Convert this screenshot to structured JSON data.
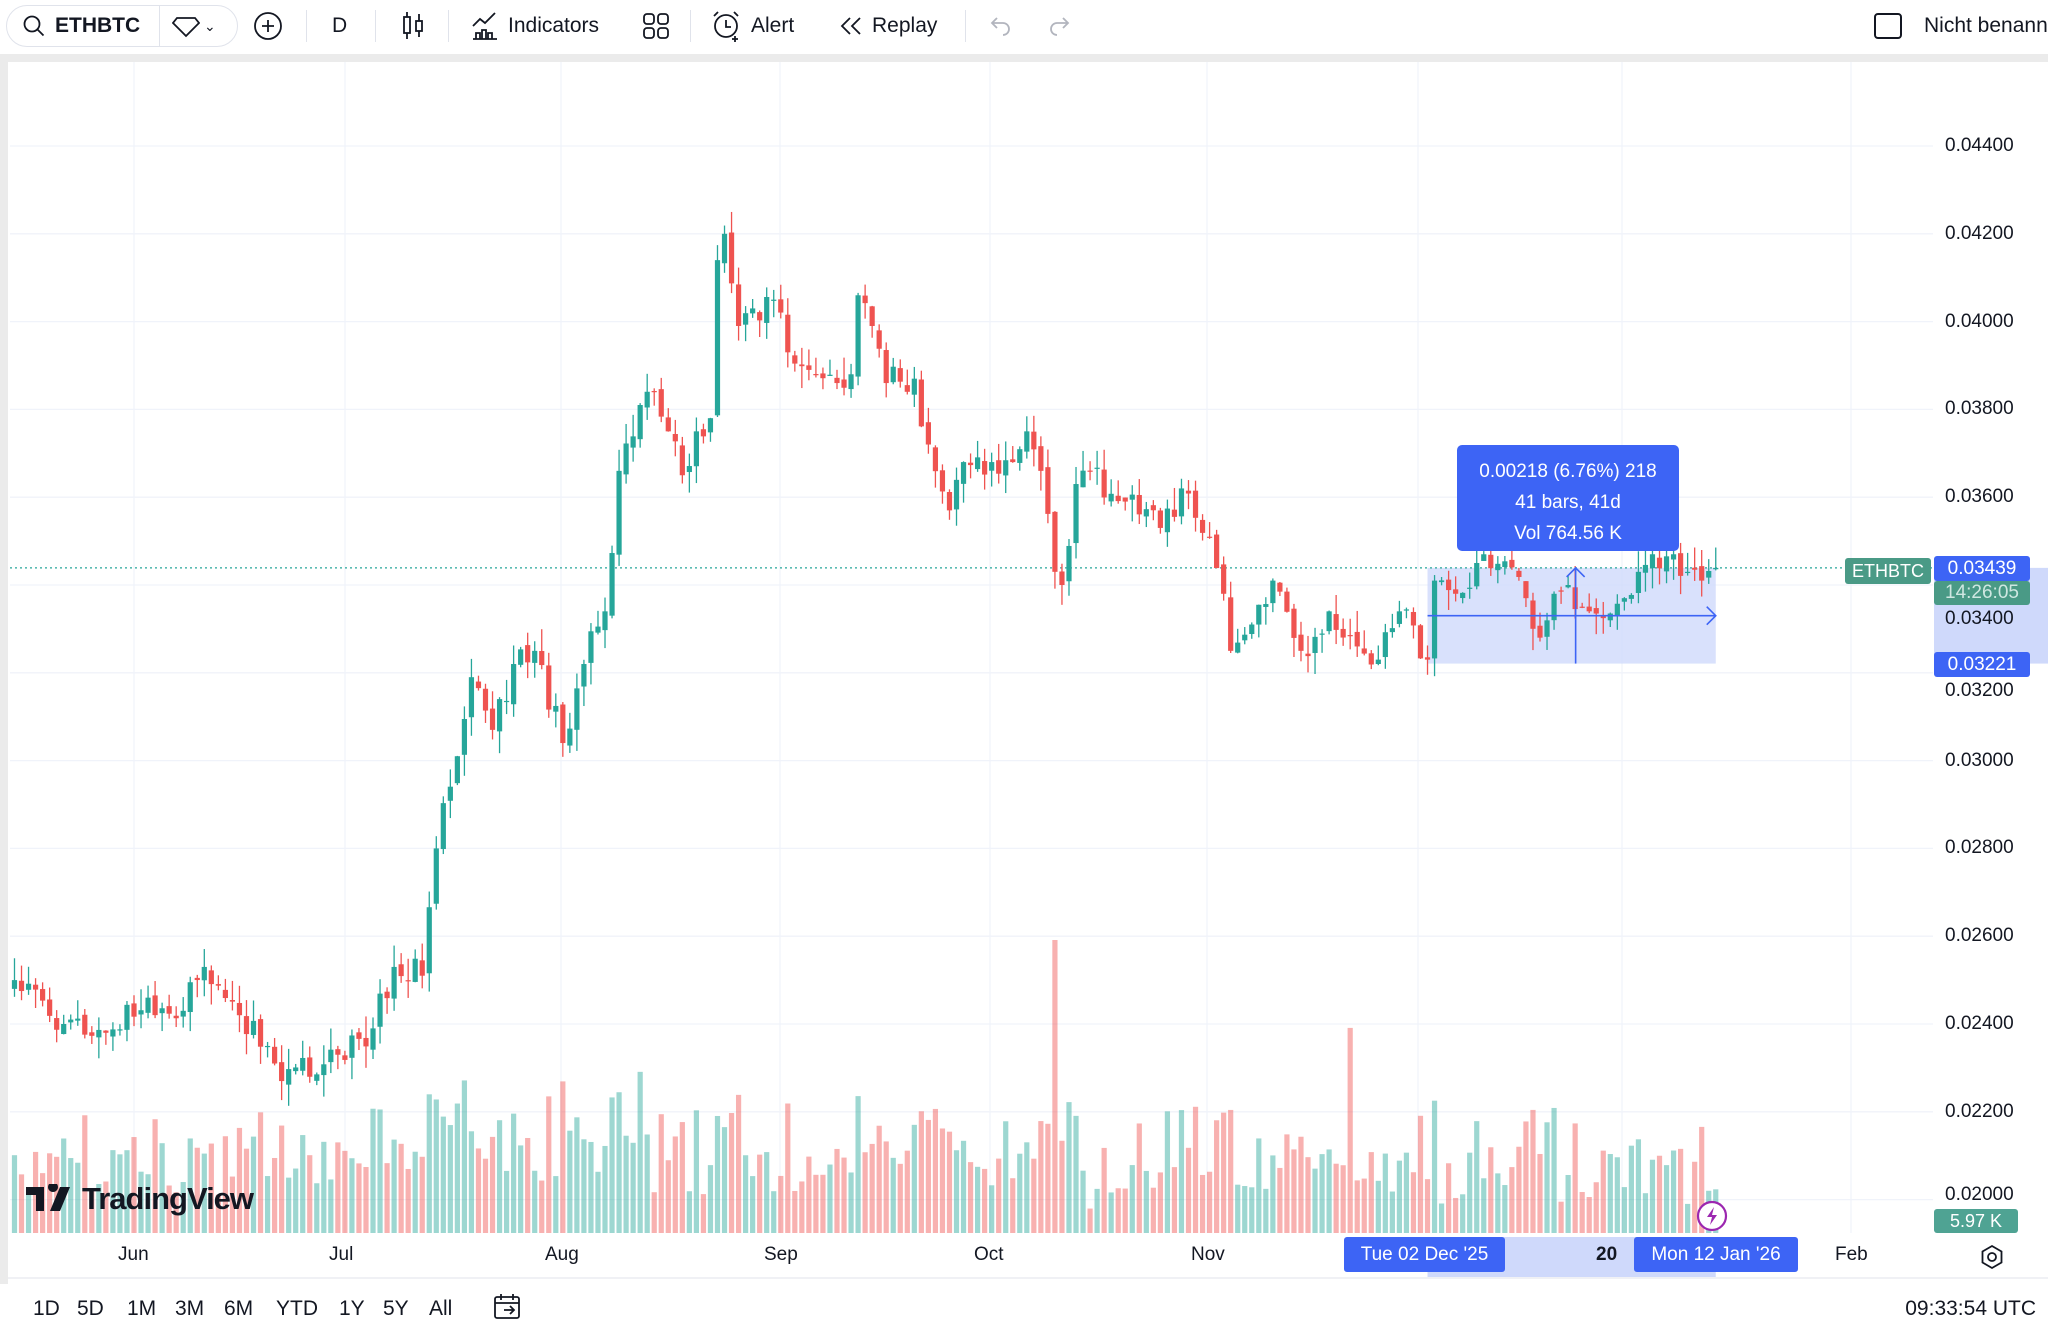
{
  "toolbar": {
    "symbol": "ETHBTC",
    "interval": "D",
    "indicators_label": "Indicators",
    "alert_label": "Alert",
    "replay_label": "Replay",
    "layout_name": "Nicht benann"
  },
  "price_axis": {
    "ticks": [
      "0.04400",
      "0.04200",
      "0.04000",
      "0.03800",
      "0.03600",
      "0.03400",
      "0.03200",
      "0.03000",
      "0.02800",
      "0.02600",
      "0.02400",
      "0.02200",
      "0.02000"
    ],
    "symbol_tag": "ETHBTC",
    "last_price": "0.03439",
    "countdown": "14:26:05",
    "measure_low": "0.03221",
    "volume_tag": "5.97 K"
  },
  "time_axis": {
    "ticks": [
      "Jun",
      "Jul",
      "Aug",
      "Sep",
      "Oct",
      "Nov",
      "20",
      "Feb"
    ],
    "range_start": "Tue 02 Dec '25",
    "range_end": "Mon 12 Jan '26"
  },
  "measure": {
    "line1": "0.00218 (6.76%) 218",
    "line2": "41 bars, 41d",
    "line3": "Vol 764.56 K"
  },
  "logo": "TradingView",
  "bottombar": {
    "ranges": [
      "1D",
      "5D",
      "1M",
      "3M",
      "6M",
      "YTD",
      "1Y",
      "5Y",
      "All"
    ],
    "clock": "09:33:54 UTC"
  },
  "colors": {
    "up": "#26a69a",
    "down": "#ef5350",
    "measure": "#3d64f5",
    "measure_fill": "#cfd9fb"
  },
  "chart_data": {
    "type": "candlestick",
    "symbol": "ETHBTC",
    "interval": "1D",
    "ylim": [
      0.0195,
      0.0445
    ],
    "price_path": [
      [
        "2025-05-15",
        0.025
      ],
      [
        "2025-05-22",
        0.024
      ],
      [
        "2025-05-28",
        0.0238
      ],
      [
        "2025-06-03",
        0.0246
      ],
      [
        "2025-06-08",
        0.0243
      ],
      [
        "2025-06-11",
        0.0253
      ],
      [
        "2025-06-16",
        0.0242
      ],
      [
        "2025-06-20",
        0.0235
      ],
      [
        "2025-06-22",
        0.0227
      ],
      [
        "2025-06-30",
        0.0233
      ],
      [
        "2025-07-05",
        0.0239
      ],
      [
        "2025-07-08",
        0.0253
      ],
      [
        "2025-07-12",
        0.0251
      ],
      [
        "2025-07-14",
        0.028
      ],
      [
        "2025-07-17",
        0.0301
      ],
      [
        "2025-07-19",
        0.0319
      ],
      [
        "2025-07-22",
        0.0307
      ],
      [
        "2025-07-25",
        0.0322
      ],
      [
        "2025-07-28",
        0.0325
      ],
      [
        "2025-08-01",
        0.0304
      ],
      [
        "2025-08-04",
        0.0322
      ],
      [
        "2025-08-07",
        0.0334
      ],
      [
        "2025-08-09",
        0.0366
      ],
      [
        "2025-08-12",
        0.0381
      ],
      [
        "2025-08-14",
        0.0384
      ],
      [
        "2025-08-16",
        0.0375
      ],
      [
        "2025-08-18",
        0.0365
      ],
      [
        "2025-08-20",
        0.0375
      ],
      [
        "2025-08-22",
        0.0378
      ],
      [
        "2025-08-23",
        0.0414
      ],
      [
        "2025-08-24",
        0.042
      ],
      [
        "2025-08-26",
        0.0399
      ],
      [
        "2025-08-28",
        0.0403
      ],
      [
        "2025-08-31",
        0.0405
      ],
      [
        "2025-09-02",
        0.0393
      ],
      [
        "2025-09-05",
        0.0389
      ],
      [
        "2025-09-09",
        0.0386
      ],
      [
        "2025-09-11",
        0.0388
      ],
      [
        "2025-09-12",
        0.0406
      ],
      [
        "2025-09-14",
        0.0399
      ],
      [
        "2025-09-16",
        0.0386
      ],
      [
        "2025-09-20",
        0.0387
      ],
      [
        "2025-09-22",
        0.0372
      ],
      [
        "2025-09-25",
        0.0357
      ],
      [
        "2025-09-27",
        0.0368
      ],
      [
        "2025-10-01",
        0.0368
      ],
      [
        "2025-10-04",
        0.0368
      ],
      [
        "2025-10-06",
        0.0375
      ],
      [
        "2025-10-08",
        0.0366
      ],
      [
        "2025-10-10",
        0.0343
      ],
      [
        "2025-10-11",
        0.034
      ],
      [
        "2025-10-13",
        0.0363
      ],
      [
        "2025-10-15",
        0.0366
      ],
      [
        "2025-10-20",
        0.0359
      ],
      [
        "2025-10-25",
        0.0353
      ],
      [
        "2025-10-28",
        0.0362
      ],
      [
        "2025-11-01",
        0.0351
      ],
      [
        "2025-11-03",
        0.0338
      ],
      [
        "2025-11-04",
        0.0325
      ],
      [
        "2025-11-07",
        0.0331
      ],
      [
        "2025-11-10",
        0.0341
      ],
      [
        "2025-11-14",
        0.0325
      ],
      [
        "2025-11-18",
        0.0334
      ],
      [
        "2025-11-22",
        0.0326
      ],
      [
        "2025-11-25",
        0.0323
      ],
      [
        "2025-11-28",
        0.0334
      ],
      [
        "2025-12-02",
        0.0323
      ],
      [
        "2025-12-03",
        0.0341
      ],
      [
        "2025-12-06",
        0.0338
      ],
      [
        "2025-12-10",
        0.0347
      ],
      [
        "2025-12-14",
        0.0344
      ],
      [
        "2025-12-16",
        0.0337
      ],
      [
        "2025-12-18",
        0.0328
      ],
      [
        "2025-12-20",
        0.0338
      ],
      [
        "2025-12-22",
        0.034
      ],
      [
        "2025-12-25",
        0.0334
      ],
      [
        "2025-12-30",
        0.0337
      ],
      [
        "2026-01-01",
        0.0343
      ],
      [
        "2026-01-03",
        0.0347
      ],
      [
        "2026-01-06",
        0.0347
      ],
      [
        "2026-01-08",
        0.0343
      ],
      [
        "2026-01-10",
        0.0341
      ],
      [
        "2026-01-12",
        0.03439
      ]
    ],
    "measure_range": {
      "from": "2025-12-02",
      "to": "2026-01-12",
      "low": 0.03221,
      "high": 0.03439
    }
  }
}
